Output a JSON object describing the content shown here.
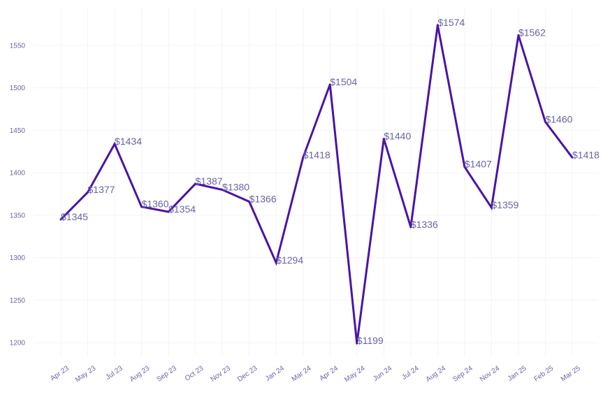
{
  "chart_data": {
    "type": "line",
    "categories": [
      "Apr 23",
      "May 23",
      "Jul 23",
      "Aug 23",
      "Sep 23",
      "Oct 23",
      "Nov 23",
      "Dec 23",
      "Jan 24",
      "Mar 24",
      "Apr 24",
      "May 24",
      "Jun 24",
      "Jul 24",
      "Aug 24",
      "Sep 24",
      "Nov 24",
      "Jan 25",
      "Feb 25",
      "Mar 25"
    ],
    "values": [
      1345,
      1377,
      1434,
      1360,
      1354,
      1387,
      1380,
      1366,
      1294,
      1418,
      1504,
      1199,
      1440,
      1336,
      1574,
      1407,
      1359,
      1562,
      1460,
      1418
    ],
    "data_labels": [
      "$1345",
      "$1377",
      "$1434",
      "$1360",
      "$1354",
      "$1387",
      "$1380",
      "$1366",
      "$1294",
      "$1418",
      "$1504",
      "$1199",
      "$1440",
      "$1336",
      "$1574",
      "$1407",
      "$1359",
      "$1562",
      "$1460",
      "$1418"
    ],
    "y_ticks": [
      "1200",
      "1250",
      "1300",
      "1350",
      "1400",
      "1450",
      "1500",
      "1550"
    ],
    "ylim": [
      1180,
      1595
    ],
    "title": "",
    "xlabel": "",
    "ylabel": "",
    "grid": true,
    "legend": "none",
    "colors": {
      "line": "#4a14a6",
      "text": "#6a64a6",
      "grid": "#f4f3f8"
    }
  }
}
